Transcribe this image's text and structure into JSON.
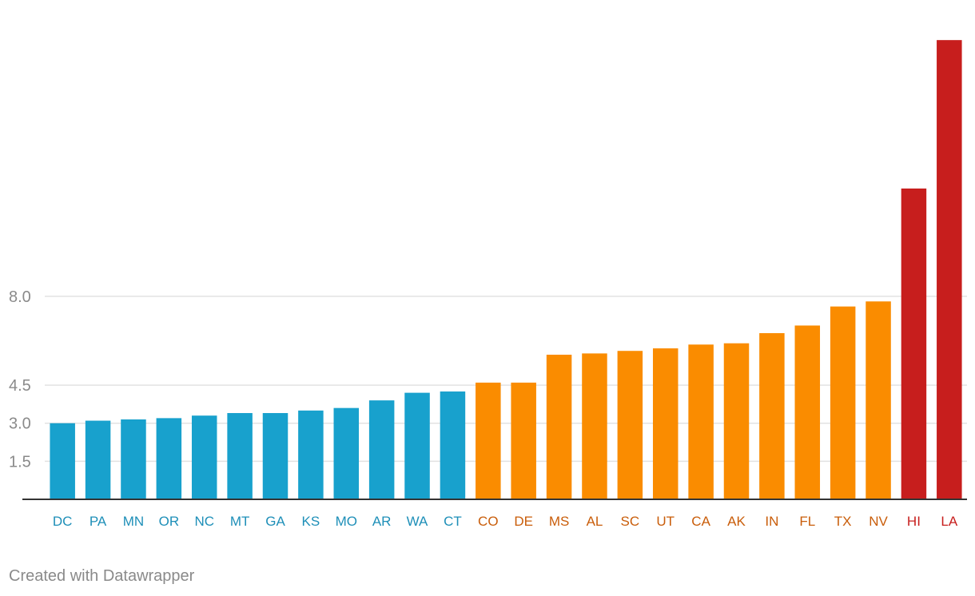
{
  "chart_data": {
    "type": "bar",
    "title": "",
    "xlabel": "",
    "ylabel": "",
    "y_ticks": [
      1.5,
      3.0,
      4.5,
      8.0
    ],
    "y_tick_labels": [
      "1.5",
      "3.0",
      "4.5",
      "8.0"
    ],
    "ylim": [
      0,
      18.2
    ],
    "grid": true,
    "categories": [
      "DC",
      "PA",
      "MN",
      "OR",
      "NC",
      "MT",
      "GA",
      "KS",
      "MO",
      "AR",
      "WA",
      "CT",
      "CO",
      "DE",
      "MS",
      "AL",
      "SC",
      "UT",
      "CA",
      "AK",
      "IN",
      "FL",
      "TX",
      "NV",
      "HI",
      "LA"
    ],
    "values": [
      3.0,
      3.1,
      3.15,
      3.2,
      3.3,
      3.4,
      3.4,
      3.5,
      3.6,
      3.9,
      4.2,
      4.25,
      4.6,
      4.6,
      5.7,
      5.75,
      5.85,
      5.95,
      6.1,
      6.15,
      6.55,
      6.85,
      7.6,
      7.8,
      12.25,
      18.1
    ],
    "groups": [
      "blue",
      "blue",
      "blue",
      "blue",
      "blue",
      "blue",
      "blue",
      "blue",
      "blue",
      "blue",
      "blue",
      "blue",
      "orange",
      "orange",
      "orange",
      "orange",
      "orange",
      "orange",
      "orange",
      "orange",
      "orange",
      "orange",
      "orange",
      "orange",
      "red",
      "red"
    ],
    "colors": {
      "blue": {
        "bar": "#18a1cd",
        "label": "#1e8fb8"
      },
      "orange": {
        "bar": "#fa8c00",
        "label": "#c95d0a"
      },
      "red": {
        "bar": "#c71e1d",
        "label": "#c71e1d"
      }
    }
  },
  "footer": {
    "credit": "Created with Datawrapper"
  }
}
